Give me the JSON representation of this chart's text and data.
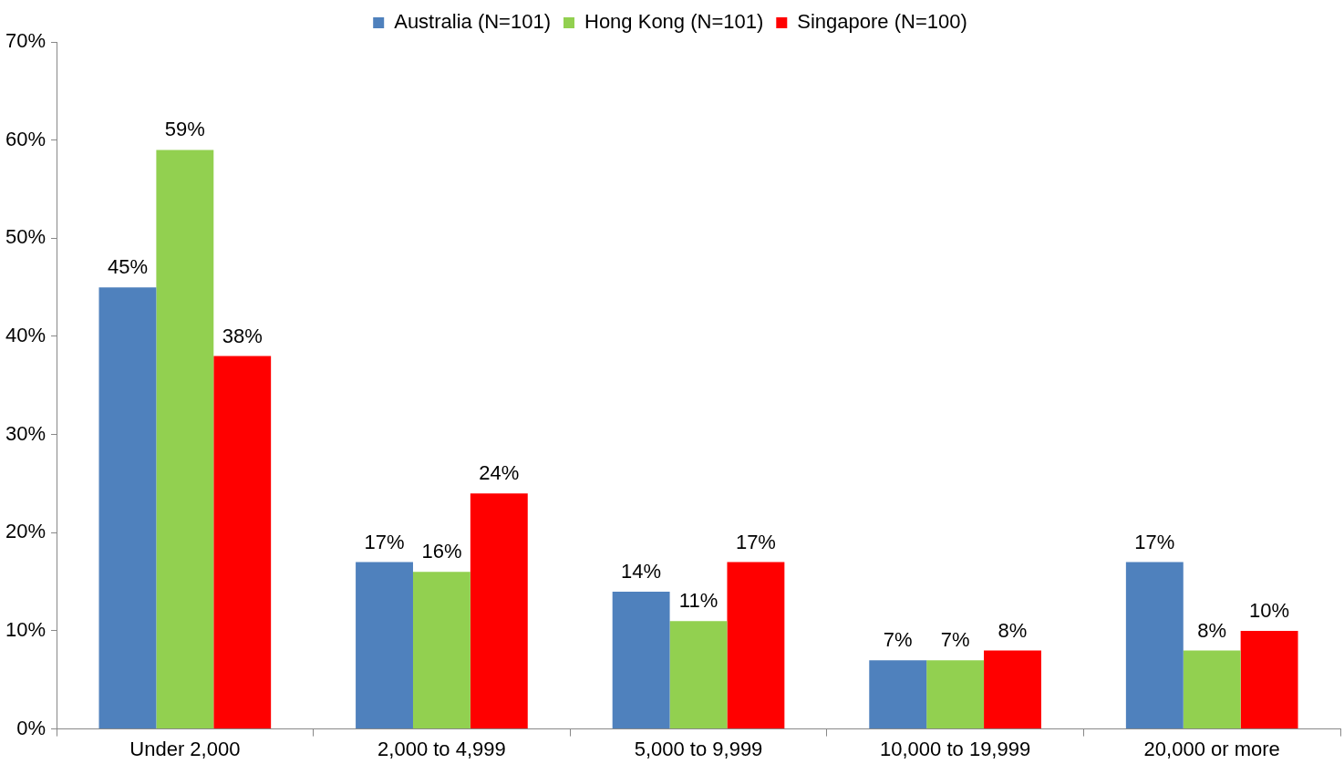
{
  "chart_data": {
    "type": "bar",
    "categories": [
      "Under 2,000",
      "2,000 to 4,999",
      "5,000 to 9,999",
      "10,000 to 19,999",
      "20,000 or more"
    ],
    "series": [
      {
        "name": "Australia (N=101)",
        "color": "#4f81bd",
        "values": [
          45,
          17,
          14,
          7,
          17
        ],
        "value_labels": [
          "45%",
          "17%",
          "14%",
          "7%",
          "17%"
        ]
      },
      {
        "name": "Hong Kong (N=101)",
        "color": "#92d050",
        "values": [
          59,
          16,
          11,
          7,
          8
        ],
        "value_labels": [
          "59%",
          "16%",
          "11%",
          "7%",
          "8%"
        ]
      },
      {
        "name": "Singapore (N=100)",
        "color": "#ff0000",
        "values": [
          38,
          24,
          17,
          8,
          10
        ],
        "value_labels": [
          "38%",
          "24%",
          "17%",
          "8%",
          "10%"
        ]
      }
    ],
    "ylim": [
      0,
      70
    ],
    "yticks": [
      {
        "value": 0,
        "label": "0%"
      },
      {
        "value": 10,
        "label": "10%"
      },
      {
        "value": 20,
        "label": "20%"
      },
      {
        "value": 30,
        "label": "30%"
      },
      {
        "value": 40,
        "label": "40%"
      },
      {
        "value": 50,
        "label": "50%"
      },
      {
        "value": 60,
        "label": "60%"
      },
      {
        "value": 70,
        "label": "70%"
      }
    ],
    "legend": "top"
  }
}
